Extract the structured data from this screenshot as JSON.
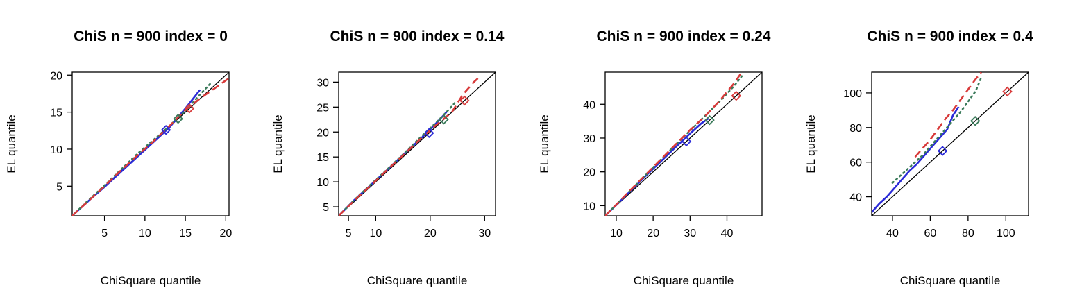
{
  "chart_data": [
    {
      "type": "line",
      "title": "ChiS n = 900 index = 0",
      "xlabel": "ChiSquare quantile",
      "ylabel": "EL quantile",
      "xlim": [
        1,
        20.4
      ],
      "ylim": [
        1,
        20.4
      ],
      "xticks": [
        5,
        10,
        15,
        20
      ],
      "yticks": [
        5,
        10,
        15,
        20
      ],
      "grid": false,
      "reference_line": "y = x",
      "series": [
        {
          "color": "#2a2ad8",
          "dash": "solid",
          "x": [
            1,
            3,
            5,
            7,
            9,
            11,
            13,
            15,
            16.8
          ],
          "y": [
            1,
            3,
            4.9,
            6.9,
            8.9,
            10.9,
            12.9,
            15.5,
            18
          ]
        },
        {
          "color": "#3a7a5a",
          "dash": "dotted",
          "x": [
            1,
            3,
            5,
            7,
            9,
            11,
            13,
            15,
            17,
            18.3
          ],
          "y": [
            1,
            3.1,
            5.1,
            7.2,
            9.3,
            11.2,
            13.1,
            15.2,
            17.6,
            19.1
          ]
        },
        {
          "color": "#d83a3a",
          "dash": "dashed",
          "x": [
            1,
            3,
            5,
            7,
            9,
            11,
            13,
            15,
            17,
            18.6,
            20.4
          ],
          "y": [
            1,
            3,
            5,
            7.1,
            9.1,
            11,
            13.1,
            15.3,
            17,
            18.2,
            19.6
          ]
        }
      ],
      "markers": [
        {
          "color": "#2a2ad8",
          "x": 12.6,
          "y": 12.6
        },
        {
          "color": "#3a7a5a",
          "x": 14.1,
          "y": 14.1
        },
        {
          "color": "#d83a3a",
          "x": 15.5,
          "y": 15.5
        }
      ]
    },
    {
      "type": "line",
      "title": "ChiS n = 900 index = 0.14",
      "xlabel": "ChiSquare quantile",
      "ylabel": "EL quantile",
      "xlim": [
        3.2,
        32
      ],
      "ylim": [
        3.2,
        32
      ],
      "xticks": [
        5,
        10,
        20,
        30
      ],
      "yticks": [
        5,
        10,
        15,
        20,
        25,
        30
      ],
      "grid": false,
      "reference_line": "y = x",
      "series": [
        {
          "color": "#2a2ad8",
          "dash": "solid",
          "x": [
            3.2,
            6,
            9,
            12,
            15,
            18,
            20,
            22,
            23
          ],
          "y": [
            3.2,
            6.3,
            9.3,
            12.3,
            15.4,
            18.4,
            20.5,
            22.8,
            24
          ]
        },
        {
          "color": "#3a7a5a",
          "dash": "dotted",
          "x": [
            3.2,
            6,
            9,
            12,
            15,
            18,
            21,
            23,
            24.5
          ],
          "y": [
            3.2,
            6.3,
            9.4,
            12.4,
            15.5,
            18.7,
            21.8,
            24,
            25.8
          ]
        },
        {
          "color": "#d83a3a",
          "dash": "dashed",
          "x": [
            3.2,
            6,
            9,
            12,
            15,
            18,
            21,
            24,
            26,
            28,
            29.3
          ],
          "y": [
            3.2,
            6.2,
            9.2,
            12.3,
            15.3,
            18.4,
            21.3,
            24,
            27.5,
            30,
            31.3
          ]
        }
      ],
      "markers": [
        {
          "color": "#2a2ad8",
          "x": 19.8,
          "y": 19.8
        },
        {
          "color": "#3a7a5a",
          "x": 22.5,
          "y": 22.5
        },
        {
          "color": "#d83a3a",
          "x": 26.3,
          "y": 26.3
        }
      ]
    },
    {
      "type": "line",
      "title": "ChiS n = 900 index = 0.24",
      "xlabel": "ChiSquare quantile",
      "ylabel": "EL quantile",
      "xlim": [
        7,
        49.5
      ],
      "ylim": [
        7,
        49.5
      ],
      "xticks": [
        10,
        20,
        30,
        40
      ],
      "yticks": [
        10,
        20,
        30,
        40
      ],
      "grid": false,
      "reference_line": "y = x",
      "series": [
        {
          "color": "#2a2ad8",
          "dash": "solid",
          "x": [
            7,
            10,
            14,
            18,
            22,
            26,
            30,
            33,
            35
          ],
          "y": [
            7,
            10.2,
            14.5,
            18.8,
            23,
            27.2,
            31.3,
            34.3,
            35.8
          ]
        },
        {
          "color": "#3a7a5a",
          "dash": "dotted",
          "x": [
            7,
            10,
            14,
            18,
            22,
            26,
            30,
            34,
            38,
            42,
            44
          ],
          "y": [
            7,
            10.3,
            14.7,
            19.1,
            23.5,
            27.9,
            32.2,
            36.5,
            40.8,
            45.5,
            48.3
          ]
        },
        {
          "color": "#d83a3a",
          "dash": "dashed",
          "x": [
            7,
            10,
            14,
            18,
            22,
            26,
            30,
            34,
            38,
            42,
            44
          ],
          "y": [
            7,
            10.3,
            14.8,
            19.2,
            23.6,
            28,
            32.4,
            36.4,
            41,
            46.3,
            49.5
          ]
        }
      ],
      "markers": [
        {
          "color": "#2a2ad8",
          "x": 29,
          "y": 29
        },
        {
          "color": "#3a7a5a",
          "x": 35.3,
          "y": 35.3
        },
        {
          "color": "#d83a3a",
          "x": 42.5,
          "y": 42.5
        }
      ]
    },
    {
      "type": "line",
      "title": "ChiS n = 900 index = 0.4",
      "xlabel": "ChiSquare quantile",
      "ylabel": "EL quantile",
      "xlim": [
        29,
        112
      ],
      "ylim": [
        29,
        112
      ],
      "xticks": [
        40,
        60,
        80,
        100
      ],
      "yticks": [
        40,
        60,
        80,
        100
      ],
      "grid": false,
      "reference_line": "y = x",
      "series": [
        {
          "color": "#2a2ad8",
          "dash": "solid",
          "x": [
            29,
            33,
            37,
            41,
            45,
            49,
            53,
            57,
            61,
            65,
            69,
            72,
            75
          ],
          "y": [
            31,
            36,
            40,
            45,
            50,
            55,
            59,
            64,
            69,
            74,
            79,
            87,
            92
          ]
        },
        {
          "color": "#3a7a5a",
          "dash": "dotted",
          "x": [
            40,
            44,
            48,
            52,
            56,
            60,
            64,
            68,
            72,
            76,
            80,
            84,
            87
          ],
          "y": [
            48,
            52,
            56,
            60,
            64,
            69,
            74,
            79,
            84,
            89,
            95,
            101,
            109
          ]
        },
        {
          "color": "#d83a3a",
          "dash": "dashed",
          "x": [
            52,
            56,
            60,
            64,
            68,
            72,
            76,
            80,
            84,
            87
          ],
          "y": [
            63,
            68,
            73,
            79,
            85,
            90,
            96,
            102,
            108,
            112
          ]
        }
      ],
      "markers": [
        {
          "color": "#2a2ad8",
          "x": 66.5,
          "y": 66.5
        },
        {
          "color": "#3a7a5a",
          "x": 83.8,
          "y": 83.8
        },
        {
          "color": "#d83a3a",
          "x": 100.8,
          "y": 100.8
        }
      ]
    }
  ]
}
